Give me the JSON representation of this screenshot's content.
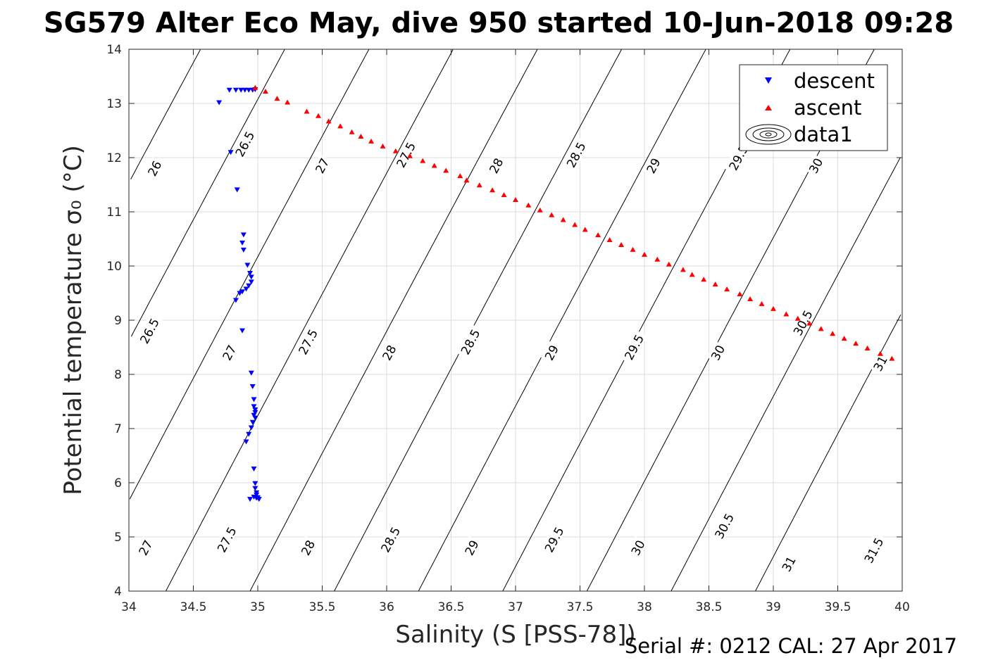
{
  "chart_data": {
    "type": "scatter",
    "title": "SG579 Alter Eco May, dive 950 started 10-Jun-2018 09:28",
    "xlabel": "Salinity (S [PSS-78])",
    "ylabel": "Potential temperature σ₀ (°C)",
    "footer": "Serial #: 0212  CAL: 27 Apr 2017",
    "xlim": [
      34,
      40
    ],
    "ylim": [
      4,
      14
    ],
    "xticks": [
      34,
      34.5,
      35,
      35.5,
      36,
      36.5,
      37,
      37.5,
      38,
      38.5,
      39,
      39.5,
      40
    ],
    "yticks": [
      4,
      5,
      6,
      7,
      8,
      9,
      10,
      11,
      12,
      13,
      14
    ],
    "grid": true,
    "legend_position": "top-right",
    "colors": {
      "descent": "#0000ff",
      "ascent": "#ff0000",
      "contour": "#000000",
      "grid": "#dcdcdc"
    },
    "series": [
      {
        "name": "descent",
        "marker": "triangle-down",
        "points": [
          [
            34.7,
            13.02
          ],
          [
            34.78,
            13.25
          ],
          [
            34.83,
            13.25
          ],
          [
            34.87,
            13.25
          ],
          [
            34.9,
            13.25
          ],
          [
            34.93,
            13.25
          ],
          [
            34.96,
            13.25
          ],
          [
            34.98,
            13.26
          ],
          [
            34.79,
            12.1
          ],
          [
            34.84,
            11.41
          ],
          [
            34.89,
            10.58
          ],
          [
            34.88,
            10.43
          ],
          [
            34.89,
            10.3
          ],
          [
            34.92,
            10.02
          ],
          [
            34.94,
            9.87
          ],
          [
            34.95,
            9.8
          ],
          [
            34.95,
            9.71
          ],
          [
            34.93,
            9.64
          ],
          [
            34.91,
            9.58
          ],
          [
            34.88,
            9.53
          ],
          [
            34.86,
            9.5
          ],
          [
            34.83,
            9.37
          ],
          [
            34.88,
            8.81
          ],
          [
            34.95,
            8.03
          ],
          [
            34.96,
            7.78
          ],
          [
            34.97,
            7.54
          ],
          [
            34.97,
            7.41
          ],
          [
            34.98,
            7.35
          ],
          [
            34.98,
            7.3
          ],
          [
            34.97,
            7.25
          ],
          [
            34.98,
            7.2
          ],
          [
            34.96,
            7.12
          ],
          [
            34.95,
            7.02
          ],
          [
            34.93,
            6.9
          ],
          [
            34.91,
            6.76
          ],
          [
            34.97,
            6.26
          ],
          [
            34.98,
            5.99
          ],
          [
            34.98,
            5.9
          ],
          [
            34.99,
            5.82
          ],
          [
            34.99,
            5.78
          ],
          [
            35.0,
            5.73
          ],
          [
            35.01,
            5.7
          ],
          [
            34.99,
            5.72
          ],
          [
            34.97,
            5.74
          ],
          [
            34.94,
            5.7
          ]
        ]
      },
      {
        "name": "ascent",
        "marker": "triangle-up",
        "points": [
          [
            34.98,
            13.29
          ],
          [
            35.06,
            13.22
          ],
          [
            35.15,
            13.09
          ],
          [
            35.23,
            13.02
          ],
          [
            35.38,
            12.85
          ],
          [
            35.47,
            12.77
          ],
          [
            35.55,
            12.67
          ],
          [
            35.64,
            12.58
          ],
          [
            35.73,
            12.47
          ],
          [
            35.8,
            12.39
          ],
          [
            35.88,
            12.3
          ],
          [
            35.97,
            12.21
          ],
          [
            36.07,
            12.12
          ],
          [
            36.18,
            12.03
          ],
          [
            36.28,
            11.94
          ],
          [
            36.37,
            11.85
          ],
          [
            36.46,
            11.76
          ],
          [
            36.57,
            11.66
          ],
          [
            36.62,
            11.58
          ],
          [
            36.72,
            11.49
          ],
          [
            36.82,
            11.4
          ],
          [
            36.91,
            11.31
          ],
          [
            37.0,
            11.22
          ],
          [
            37.1,
            11.12
          ],
          [
            37.19,
            11.03
          ],
          [
            37.28,
            10.94
          ],
          [
            37.37,
            10.85
          ],
          [
            37.46,
            10.76
          ],
          [
            37.54,
            10.67
          ],
          [
            37.64,
            10.57
          ],
          [
            37.73,
            10.48
          ],
          [
            37.82,
            10.39
          ],
          [
            37.91,
            10.3
          ],
          [
            38.0,
            10.21
          ],
          [
            38.1,
            10.12
          ],
          [
            38.19,
            10.03
          ],
          [
            38.3,
            9.93
          ],
          [
            38.37,
            9.84
          ],
          [
            38.46,
            9.75
          ],
          [
            38.55,
            9.66
          ],
          [
            38.64,
            9.57
          ],
          [
            38.74,
            9.48
          ],
          [
            38.82,
            9.39
          ],
          [
            38.91,
            9.3
          ],
          [
            39.0,
            9.21
          ],
          [
            39.1,
            9.11
          ],
          [
            39.19,
            9.03
          ],
          [
            39.28,
            8.94
          ],
          [
            39.37,
            8.84
          ],
          [
            39.46,
            8.75
          ],
          [
            39.55,
            8.66
          ],
          [
            39.64,
            8.57
          ],
          [
            39.73,
            8.48
          ],
          [
            39.83,
            8.38
          ],
          [
            39.92,
            8.29
          ]
        ]
      },
      {
        "name": "data1",
        "marker": "contour",
        "levels": [
          26,
          26.5,
          27,
          27.5,
          28,
          28.5,
          29,
          29.5,
          30,
          30.5,
          31,
          31.5
        ]
      }
    ],
    "contour_labels": [
      {
        "text": "26",
        "s": 34.2,
        "t": 11.8
      },
      {
        "text": "26.5",
        "s": 34.9,
        "t": 12.25
      },
      {
        "text": "27",
        "s": 35.5,
        "t": 11.85
      },
      {
        "text": "27.5",
        "s": 36.15,
        "t": 12.05
      },
      {
        "text": "28",
        "s": 36.85,
        "t": 11.85
      },
      {
        "text": "28.5",
        "s": 37.47,
        "t": 12.05
      },
      {
        "text": "29",
        "s": 38.07,
        "t": 11.85
      },
      {
        "text": "29.5",
        "s": 38.73,
        "t": 12.0
      },
      {
        "text": "30",
        "s": 39.33,
        "t": 11.85
      },
      {
        "text": "26.5",
        "s": 34.16,
        "t": 8.8
      },
      {
        "text": "27",
        "s": 34.78,
        "t": 8.4
      },
      {
        "text": "27.5",
        "s": 35.39,
        "t": 8.6
      },
      {
        "text": "28",
        "s": 36.02,
        "t": 8.4
      },
      {
        "text": "28.5",
        "s": 36.65,
        "t": 8.6
      },
      {
        "text": "29",
        "s": 37.28,
        "t": 8.4
      },
      {
        "text": "29.5",
        "s": 37.92,
        "t": 8.5
      },
      {
        "text": "30",
        "s": 38.57,
        "t": 8.4
      },
      {
        "text": "30.5",
        "s": 39.23,
        "t": 8.95
      },
      {
        "text": "31",
        "s": 39.83,
        "t": 8.2
      },
      {
        "text": "27",
        "s": 34.13,
        "t": 4.8
      },
      {
        "text": "27.5",
        "s": 34.76,
        "t": 4.95
      },
      {
        "text": "28",
        "s": 35.39,
        "t": 4.8
      },
      {
        "text": "28.5",
        "s": 36.03,
        "t": 4.95
      },
      {
        "text": "29",
        "s": 36.66,
        "t": 4.8
      },
      {
        "text": "29.5",
        "s": 37.3,
        "t": 4.95
      },
      {
        "text": "30",
        "s": 37.95,
        "t": 4.8
      },
      {
        "text": "30.5",
        "s": 38.62,
        "t": 5.2
      },
      {
        "text": "31",
        "s": 39.12,
        "t": 4.5
      },
      {
        "text": "31.5",
        "s": 39.78,
        "t": 4.75
      }
    ]
  }
}
